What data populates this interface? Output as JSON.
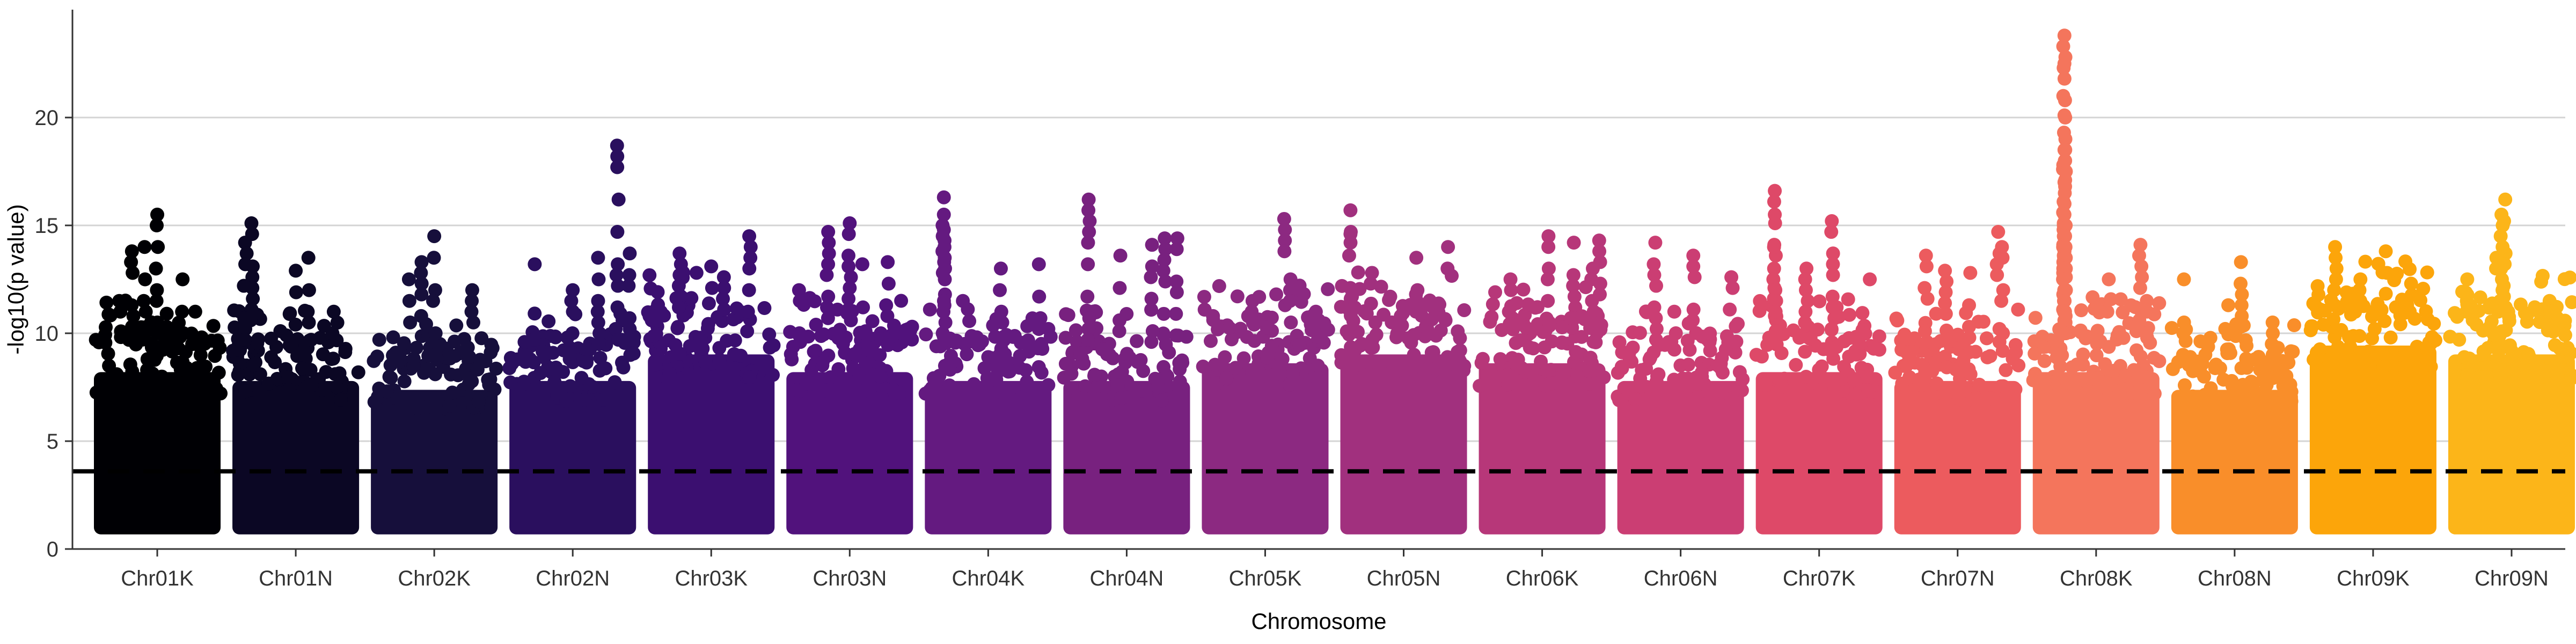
{
  "chart_data": {
    "type": "scatter",
    "subtype": "manhattan",
    "title": "",
    "xlabel": "Chromosome",
    "ylabel": "-log10(p value)",
    "ylim": [
      0,
      25
    ],
    "yticks": [
      0,
      5,
      10,
      15,
      20
    ],
    "grid": "horizontal",
    "legend": "none",
    "threshold": {
      "value": 3.6,
      "style": "dashed",
      "color": "#000000"
    },
    "categories": [
      "Chr01K",
      "Chr01N",
      "Chr02K",
      "Chr02N",
      "Chr03K",
      "Chr03N",
      "Chr04K",
      "Chr04N",
      "Chr05K",
      "Chr05N",
      "Chr06K",
      "Chr06N",
      "Chr07K",
      "Chr07N",
      "Chr08K",
      "Chr08N",
      "Chr09K",
      "Chr09N"
    ],
    "colors": [
      "#000004",
      "#0b0724",
      "#160f3b",
      "#2a0f5e",
      "#3b0f70",
      "#51127c",
      "#641a80",
      "#78217f",
      "#8c2981",
      "#a1307e",
      "#b73779",
      "#cb3e73",
      "#de4968",
      "#ec5b5e",
      "#f4755c",
      "#f98e2a",
      "#fca50a",
      "#fcb519"
    ],
    "series": [
      {
        "name": "Chr01K",
        "typical_max": 10.0,
        "peaks": [
          [
            0.5,
            15.5
          ],
          [
            0.4,
            14.0
          ],
          [
            0.3,
            13.8
          ],
          [
            0.7,
            12.5
          ],
          [
            0.2,
            11.5
          ],
          [
            0.8,
            11.0
          ]
        ]
      },
      {
        "name": "Chr01N",
        "typical_max": 9.5,
        "peaks": [
          [
            0.15,
            15.1
          ],
          [
            0.1,
            14.2
          ],
          [
            0.6,
            13.5
          ],
          [
            0.5,
            12.9
          ],
          [
            0.8,
            11.0
          ]
        ]
      },
      {
        "name": "Chr02K",
        "typical_max": 9.0,
        "peaks": [
          [
            0.5,
            14.5
          ],
          [
            0.4,
            13.3
          ],
          [
            0.3,
            12.5
          ],
          [
            0.8,
            12.0
          ]
        ]
      },
      {
        "name": "Chr02N",
        "typical_max": 9.5,
        "peaks": [
          [
            0.85,
            18.7
          ],
          [
            0.95,
            13.7
          ],
          [
            0.7,
            13.5
          ],
          [
            0.2,
            13.2
          ],
          [
            0.5,
            12.0
          ]
        ]
      },
      {
        "name": "Chr03K",
        "typical_max": 11.0,
        "peaks": [
          [
            0.8,
            14.5
          ],
          [
            0.25,
            13.7
          ],
          [
            0.5,
            13.1
          ],
          [
            0.6,
            12.6
          ]
        ]
      },
      {
        "name": "Chr03N",
        "typical_max": 10.0,
        "peaks": [
          [
            0.5,
            15.1
          ],
          [
            0.33,
            14.7
          ],
          [
            0.8,
            13.3
          ],
          [
            0.6,
            13.2
          ],
          [
            0.1,
            12.0
          ]
        ]
      },
      {
        "name": "Chr04K",
        "typical_max": 9.5,
        "peaks": [
          [
            0.15,
            16.3
          ],
          [
            0.15,
            15.5
          ],
          [
            0.6,
            13.0
          ],
          [
            0.9,
            13.2
          ],
          [
            0.3,
            11.5
          ]
        ]
      },
      {
        "name": "Chr04N",
        "typical_max": 9.5,
        "peaks": [
          [
            0.2,
            16.2
          ],
          [
            0.8,
            14.4
          ],
          [
            0.9,
            14.4
          ],
          [
            0.7,
            14.1
          ],
          [
            0.45,
            13.6
          ]
        ]
      },
      {
        "name": "Chr05K",
        "typical_max": 10.5,
        "peaks": [
          [
            0.65,
            15.3
          ],
          [
            0.7,
            12.5
          ],
          [
            0.4,
            11.5
          ],
          [
            0.9,
            11.0
          ]
        ]
      },
      {
        "name": "Chr05N",
        "typical_max": 11.0,
        "peaks": [
          [
            0.08,
            15.7
          ],
          [
            0.08,
            14.6
          ],
          [
            0.6,
            13.5
          ],
          [
            0.85,
            14.0
          ],
          [
            0.25,
            12.8
          ]
        ]
      },
      {
        "name": "Chr06K",
        "typical_max": 10.5,
        "peaks": [
          [
            0.55,
            14.5
          ],
          [
            0.75,
            14.2
          ],
          [
            0.95,
            14.3
          ],
          [
            0.25,
            12.5
          ],
          [
            0.9,
            13.0
          ]
        ]
      },
      {
        "name": "Chr06N",
        "typical_max": 9.5,
        "peaks": [
          [
            0.3,
            14.2
          ],
          [
            0.6,
            13.6
          ],
          [
            0.9,
            12.6
          ],
          [
            0.45,
            11.0
          ]
        ]
      },
      {
        "name": "Chr07K",
        "typical_max": 10.0,
        "peaks": [
          [
            0.15,
            16.6
          ],
          [
            0.15,
            15.5
          ],
          [
            0.6,
            15.2
          ],
          [
            0.4,
            13.0
          ],
          [
            0.9,
            12.5
          ]
        ]
      },
      {
        "name": "Chr07N",
        "typical_max": 9.5,
        "peaks": [
          [
            0.82,
            14.7
          ],
          [
            0.85,
            14.0
          ],
          [
            0.6,
            12.8
          ],
          [
            0.4,
            12.9
          ],
          [
            0.25,
            13.6
          ]
        ]
      },
      {
        "name": "Chr08K",
        "typical_max": 10.0,
        "peaks": [
          [
            0.25,
            23.8
          ],
          [
            0.25,
            22.5
          ],
          [
            0.25,
            20.1
          ],
          [
            0.25,
            18.5
          ],
          [
            0.25,
            17.0
          ],
          [
            0.25,
            15.5
          ],
          [
            0.25,
            14.0
          ],
          [
            0.85,
            14.1
          ],
          [
            0.6,
            12.5
          ],
          [
            0.9,
            11.5
          ]
        ]
      },
      {
        "name": "Chr08N",
        "typical_max": 9.0,
        "peaks": [
          [
            0.55,
            13.3
          ],
          [
            0.1,
            12.5
          ],
          [
            0.45,
            11.3
          ],
          [
            0.8,
            10.5
          ]
        ]
      },
      {
        "name": "Chr09K",
        "typical_max": 11.5,
        "peaks": [
          [
            0.2,
            14.0
          ],
          [
            0.6,
            13.8
          ],
          [
            0.8,
            12.3
          ],
          [
            0.4,
            12.5
          ]
        ]
      },
      {
        "name": "Chr09N",
        "typical_max": 11.0,
        "peaks": [
          [
            0.45,
            16.2
          ],
          [
            0.42,
            15.5
          ],
          [
            0.38,
            13.5
          ],
          [
            0.15,
            12.5
          ],
          [
            0.8,
            11.5
          ]
        ]
      }
    ]
  }
}
